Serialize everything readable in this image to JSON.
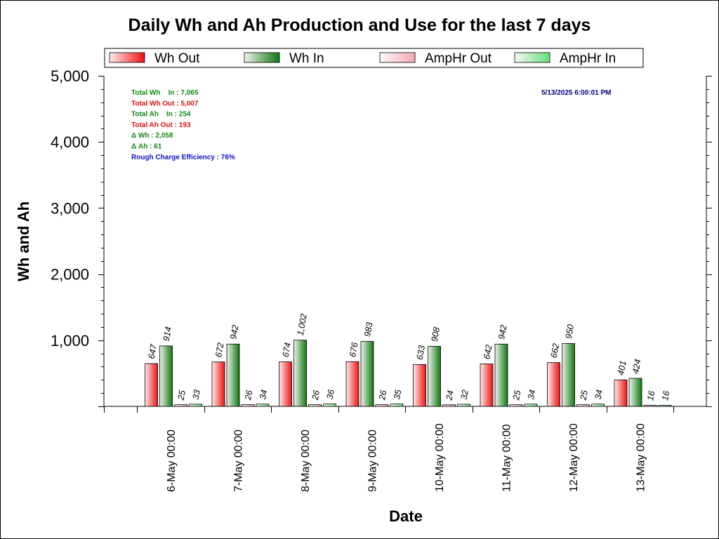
{
  "chart_data": {
    "type": "bar",
    "title": "Daily Wh and Ah Production and Use for the last 7 days",
    "xlabel": "Date",
    "ylabel": "Wh and Ah",
    "ylim": [
      0,
      5000
    ],
    "yticks": [
      "5,000",
      "4,000",
      "3,000",
      "2,000",
      "1,000"
    ],
    "ytick_values": [
      5000,
      4000,
      3000,
      2000,
      1000
    ],
    "grid": false,
    "legend_position": "top",
    "categories": [
      "6-May 00:00",
      "7-May 00:00",
      "8-May 00:00",
      "9-May 00:00",
      "10-May 00:00",
      "11-May 00:00",
      "12-May 00:00",
      "13-May 00:00"
    ],
    "series": [
      {
        "name": "Wh Out",
        "color": "#ee1111",
        "values": [
          647,
          672,
          674,
          676,
          633,
          642,
          662,
          401
        ],
        "labels": [
          "647",
          "672",
          "674",
          "676",
          "633",
          "642",
          "662",
          "401"
        ]
      },
      {
        "name": "Wh In",
        "color": "#117711",
        "values": [
          914,
          942,
          1002,
          983,
          908,
          942,
          950,
          424
        ],
        "labels": [
          "914",
          "942",
          "1,002",
          "983",
          "908",
          "942",
          "950",
          "424"
        ]
      },
      {
        "name": "AmpHr Out",
        "color": "#f4a8b4",
        "values": [
          25,
          26,
          26,
          26,
          24,
          25,
          25,
          16
        ],
        "labels": [
          "25",
          "26",
          "26",
          "26",
          "24",
          "25",
          "25",
          "16"
        ]
      },
      {
        "name": "AmpHr In",
        "color": "#66dd77",
        "values": [
          33,
          34,
          36,
          35,
          32,
          34,
          34,
          16
        ],
        "labels": [
          "33",
          "34",
          "36",
          "35",
          "32",
          "34",
          "34",
          "16"
        ]
      }
    ],
    "annotations": [
      {
        "text": "Total Wh    In : 7,065",
        "color": "#118811"
      },
      {
        "text": "Total Wh Out : 5,007",
        "color": "#dd1111"
      },
      {
        "text": "Total Ah    In : 254",
        "color": "#118811"
      },
      {
        "text": "Total Ah Out : 193",
        "color": "#dd1111"
      },
      {
        "text": "Δ Wh : 2,058",
        "color": "#118811"
      },
      {
        "text": "Δ Ah : 61",
        "color": "#118811"
      },
      {
        "text": "Rough Charge Efficiency : 76%",
        "color": "#1111cc"
      }
    ],
    "timestamp": "5/13/2025 6:00:01 PM",
    "timestamp_color": "#000080"
  }
}
